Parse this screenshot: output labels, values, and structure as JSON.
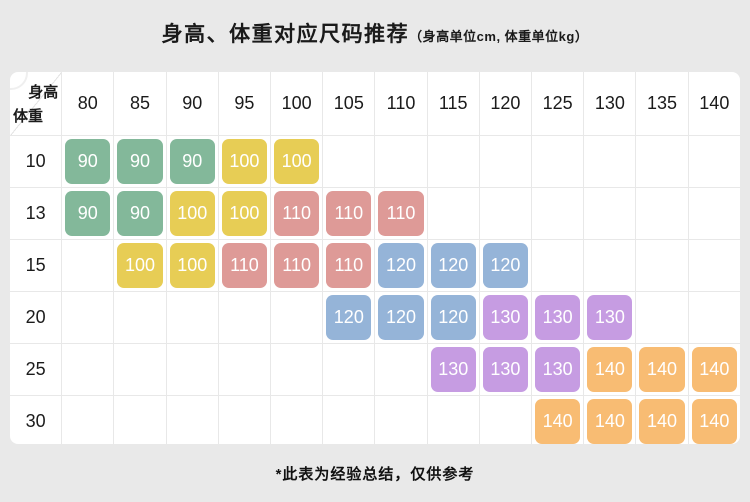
{
  "header": {
    "title": "身高、体重对应尺码推荐",
    "subtitle": "（身高单位cm, 体重单位kg）"
  },
  "corner": {
    "top": "身高",
    "bottom": "体重"
  },
  "chart_data": {
    "type": "table",
    "title": "身高、体重对应尺码推荐",
    "unit_note": "身高单位cm, 体重单位kg",
    "column_axis_label": "身高",
    "row_axis_label": "体重",
    "columns": [
      "80",
      "85",
      "90",
      "95",
      "100",
      "105",
      "110",
      "115",
      "120",
      "125",
      "130",
      "135",
      "140"
    ],
    "rows": [
      {
        "weight": "10",
        "sizes": [
          "90",
          "90",
          "90",
          "100",
          "100",
          null,
          null,
          null,
          null,
          null,
          null,
          null,
          null
        ]
      },
      {
        "weight": "13",
        "sizes": [
          "90",
          "90",
          "100",
          "100",
          "110",
          "110",
          "110",
          null,
          null,
          null,
          null,
          null,
          null
        ]
      },
      {
        "weight": "15",
        "sizes": [
          null,
          "100",
          "100",
          "110",
          "110",
          "110",
          "120",
          "120",
          "120",
          null,
          null,
          null,
          null
        ]
      },
      {
        "weight": "20",
        "sizes": [
          null,
          null,
          null,
          null,
          null,
          "120",
          "120",
          "120",
          "130",
          "130",
          "130",
          null,
          null
        ]
      },
      {
        "weight": "25",
        "sizes": [
          null,
          null,
          null,
          null,
          null,
          null,
          null,
          "130",
          "130",
          "130",
          "140",
          "140",
          "140"
        ]
      },
      {
        "weight": "30",
        "sizes": [
          null,
          null,
          null,
          null,
          null,
          null,
          null,
          null,
          null,
          "140",
          "140",
          "140",
          "140"
        ]
      }
    ]
  },
  "size_colors": {
    "90": "#83b89a",
    "100": "#e7cd55",
    "110": "#de9a97",
    "120": "#95b4d8",
    "130": "#c69ce2",
    "140": "#f8bc73"
  },
  "footer": {
    "note": "*此表为经验总结，仅供参考"
  }
}
